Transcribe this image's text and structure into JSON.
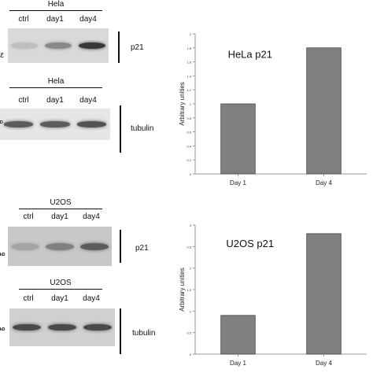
{
  "blots": [
    {
      "id": "hela-p21",
      "cell_line": "Hela",
      "lanes": [
        "ctrl",
        "day1",
        "day4"
      ],
      "marker": "p21",
      "kd_label": "ℰ",
      "band_intensity": [
        0.05,
        0.35,
        0.8
      ]
    },
    {
      "id": "hela-tubulin",
      "cell_line": "Hela",
      "lanes": [
        "ctrl",
        "day1",
        "day4"
      ],
      "marker": "tubulin",
      "kd_label": "ᴰ",
      "band_intensity": [
        0.6,
        0.6,
        0.65
      ]
    },
    {
      "id": "u2os-p21",
      "cell_line": "U2OS",
      "lanes": [
        "ctrl",
        "day1",
        "day4"
      ],
      "marker": "p21",
      "kd_label": "ᵏᴰ",
      "band_intensity": [
        0.2,
        0.4,
        0.6
      ]
    },
    {
      "id": "u2os-tubulin",
      "cell_line": "U2OS",
      "lanes": [
        "ctrl",
        "day1",
        "day4"
      ],
      "marker": "tubulin",
      "kd_label": "ᵏᴰ",
      "band_intensity": [
        0.7,
        0.7,
        0.7
      ]
    }
  ],
  "chart_data": [
    {
      "type": "bar",
      "title": "HeLa p21",
      "ylabel": "Arbitrary unities",
      "xlabel": "",
      "categories": [
        "Day 1",
        "Day 4"
      ],
      "values": [
        1.0,
        1.8
      ],
      "ylim": [
        0,
        2
      ],
      "yticks": [
        0,
        0.2,
        0.4,
        0.6,
        0.8,
        1,
        1.2,
        1.4,
        1.6,
        1.8,
        2
      ],
      "ytick_labels": [
        "0",
        "0.2",
        "0.4",
        "0.6",
        "0.8",
        "1",
        "1.2",
        "1.4",
        "1.6",
        "1.8",
        "2"
      ],
      "bar_color": "#808080",
      "grid": false
    },
    {
      "type": "bar",
      "title": "U2OS p21",
      "ylabel": "Arbitrary unities",
      "xlabel": "",
      "categories": [
        "Day 1",
        "Day 4"
      ],
      "values": [
        0.9,
        2.8
      ],
      "ylim": [
        0,
        3
      ],
      "yticks": [
        0,
        0.5,
        1,
        1.5,
        2,
        2.5,
        3
      ],
      "ytick_labels": [
        "0",
        "0.5",
        "1",
        "1.5",
        "2",
        "2.5",
        "3"
      ],
      "bar_color": "#808080",
      "grid": false
    }
  ]
}
